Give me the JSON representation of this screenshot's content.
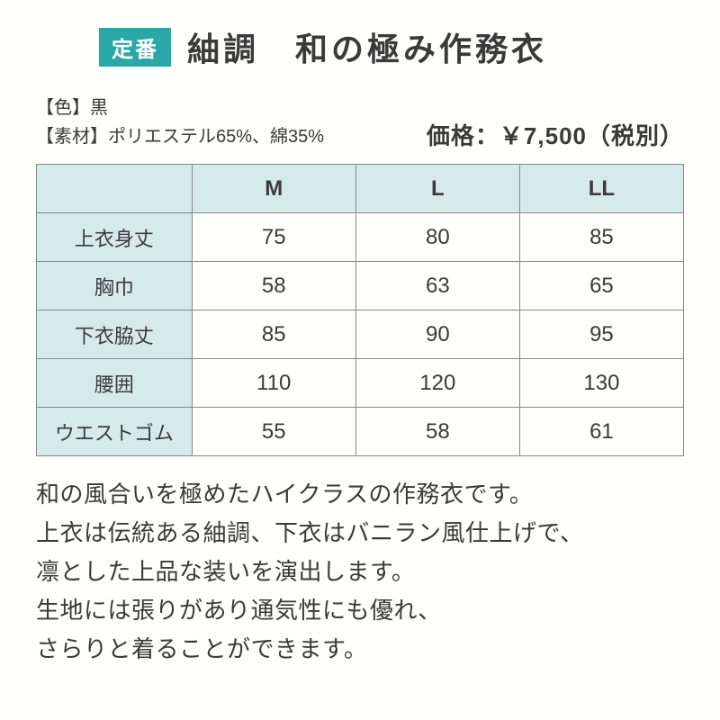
{
  "header": {
    "badge": "定番",
    "title": "紬調　和の極み作務衣"
  },
  "info": {
    "color_label": "【色】",
    "color_value": "黒",
    "material_label": "【素材】",
    "material_value": "ポリエステル65%、綿35%",
    "price": "価格：￥7,500（税別）"
  },
  "table": {
    "sizes": [
      "M",
      "L",
      "LL"
    ],
    "rows": [
      {
        "label": "上衣身丈",
        "values": [
          "75",
          "80",
          "85"
        ]
      },
      {
        "label": "胸巾",
        "values": [
          "58",
          "63",
          "65"
        ]
      },
      {
        "label": "下衣脇丈",
        "values": [
          "85",
          "90",
          "95"
        ]
      },
      {
        "label": "腰囲",
        "values": [
          "110",
          "120",
          "130"
        ]
      },
      {
        "label": "ウエストゴム",
        "values": [
          "55",
          "58",
          "61"
        ]
      }
    ]
  },
  "description": {
    "line1": "和の風合いを極めたハイクラスの作務衣です。",
    "line2": "上衣は伝統ある紬調、下衣はバニラン風仕上げで、",
    "line3": "凛とした上品な装いを演出します。",
    "line4": "生地には張りがあり通気性にも優れ、",
    "line5": "さらりと着ることができます。"
  },
  "styles": {
    "badge_bg": "#2aa8a8",
    "header_bg": "#d5ebe9",
    "border_color": "#888",
    "text_color": "#3a3a3a"
  }
}
